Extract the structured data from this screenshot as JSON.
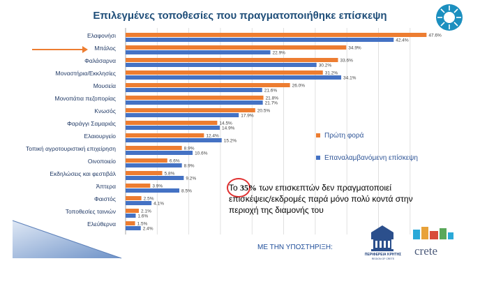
{
  "title": "Επιλεγμένες τοποθεσίες που πραγματοποιήθηκε επίσκεψη",
  "chart_data": {
    "type": "bar",
    "orientation": "horizontal",
    "categories": [
      "Ελαφονήσι",
      "Μπάλος",
      "Φαλάσαρνα",
      "Μοναστήρια/Εκκλησίες",
      "Μουσεία",
      "Μονοπάτια πεζοπορίας",
      "Κνωσός",
      "Φαράγγι Σαμαριάς",
      "Ελαιουργείο",
      "Τοπική αγροτουριστική επιχείρηση",
      "Οινοποιείο",
      "Εκδηλώσεις και φεστιβάλ",
      "Άπτερα",
      "Φαιστός",
      "Τοποθεσίες ταινιών",
      "Ελεύθερνα"
    ],
    "series": [
      {
        "name": "Πρώτη φορά",
        "color": "#ed7d31",
        "values": [
          47.6,
          34.9,
          33.6,
          31.2,
          26.0,
          21.8,
          20.5,
          14.5,
          12.4,
          8.9,
          6.6,
          5.8,
          3.9,
          2.5,
          2.1,
          1.5
        ],
        "labels": [
          "47.6%",
          "34.9%",
          "33.6%",
          "31.2%",
          "26.0%",
          "21.8%",
          "20.5%",
          "14.5%",
          "12.4%",
          "8.9%",
          "6.6%",
          "5.8%",
          "3.9%",
          "2.5%",
          "2.1%",
          "1.5%"
        ]
      },
      {
        "name": "Επαναλαμβανόμενη επίσκεψη",
        "color": "#4472c4",
        "values": [
          42.4,
          22.9,
          30.2,
          34.1,
          21.6,
          21.7,
          17.9,
          14.9,
          15.2,
          10.6,
          8.9,
          9.2,
          8.5,
          4.1,
          1.6,
          2.4
        ],
        "labels": [
          "42.4%",
          "22.9%",
          "30.2%",
          "34.1%",
          "21.6%",
          "21.7%",
          "17.9%",
          "14.9%",
          "15.2%",
          "10.6%",
          "8.9%",
          "9.2%",
          "8.5%",
          "4.1%",
          "1.6%",
          "2.4%"
        ]
      }
    ],
    "xlim": [
      0,
      48
    ],
    "grid": true,
    "legend_position": "right",
    "highlighted_category": "Μπάλος"
  },
  "note": {
    "prefix": "Το ",
    "highlight": "35%",
    "rest": " των επισκεπτών δεν πραγματοποιεί επισκέψεις/εκδρομές παρά μόνο πολύ κοντά στην περιοχή της διαμονής του"
  },
  "support_label": "ΜΕ ΤΗΝ ΥΠΟΣΤΗΡΙΞΗ:",
  "logos": {
    "region_name": "ΠΕΡΙΦΕΡΕΙΑ ΚΡΗΤΗΣ",
    "region_sub": "REGION OF CRETE",
    "crete_word": "crete"
  },
  "colors": {
    "orange": "#ed7d31",
    "blue": "#4472c4",
    "title": "#1f4e79",
    "arrow": "#ed7d31"
  }
}
